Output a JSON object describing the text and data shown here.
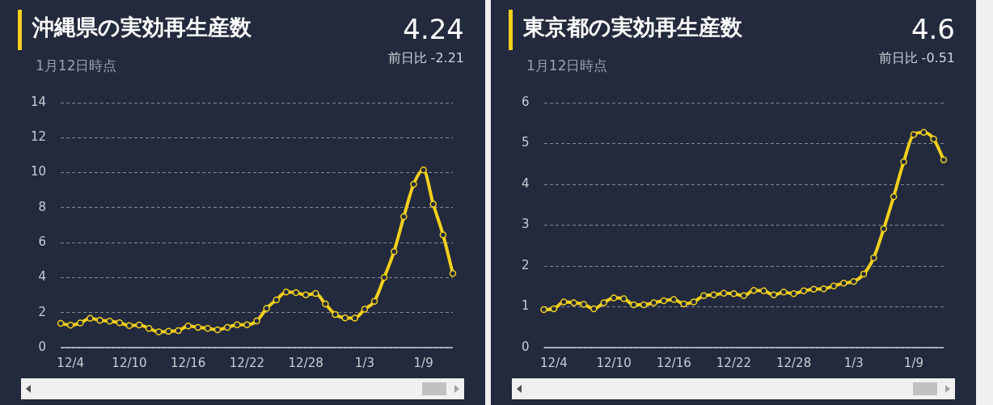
{
  "chart_data": [
    {
      "type": "line",
      "title": "沖縄県の実効再生産数",
      "subtitle": "1月12日時点",
      "annotations": [
        "4.24",
        "前日比 -2.21"
      ],
      "categories": [
        null,
        "12/4",
        null,
        null,
        null,
        null,
        null,
        "12/10",
        null,
        null,
        null,
        null,
        null,
        "12/16",
        null,
        null,
        null,
        null,
        null,
        "12/22",
        null,
        null,
        null,
        null,
        null,
        "12/28",
        null,
        null,
        null,
        null,
        null,
        "1/3",
        null,
        null,
        null,
        null,
        null,
        "1/9",
        null,
        null,
        null
      ],
      "series": [
        {
          "color": "#f2cf1d",
          "values": [
            1.39,
            1.28,
            1.41,
            1.67,
            1.56,
            1.51,
            1.42,
            1.26,
            1.29,
            1.1,
            0.9,
            0.93,
            0.97,
            1.24,
            1.16,
            1.1,
            1.02,
            1.16,
            1.31,
            1.31,
            1.52,
            2.24,
            2.73,
            3.18,
            3.14,
            3.01,
            3.09,
            2.49,
            1.9,
            1.7,
            1.69,
            2.19,
            2.65,
            4.01,
            5.49,
            7.48,
            9.33,
            10.15,
            8.2,
            6.45,
            4.24
          ]
        }
      ],
      "ylim": [
        0,
        14
      ],
      "yticks": [
        0,
        2,
        4,
        6,
        8,
        10,
        12,
        14
      ],
      "grid": "y",
      "legend": false,
      "marker": "circle",
      "line_style": "solid"
    },
    {
      "type": "line",
      "title": "東京都の実効再生産数",
      "subtitle": "1月12日時点",
      "annotations": [
        "4.6",
        "前日比 -0.51"
      ],
      "categories": [
        null,
        "12/4",
        null,
        null,
        null,
        null,
        null,
        "12/10",
        null,
        null,
        null,
        null,
        null,
        "12/16",
        null,
        null,
        null,
        null,
        null,
        "12/22",
        null,
        null,
        null,
        null,
        null,
        "12/28",
        null,
        null,
        null,
        null,
        null,
        "1/3",
        null,
        null,
        null,
        null,
        null,
        "1/9",
        null,
        null,
        null
      ],
      "series": [
        {
          "color": "#f2cf1d",
          "values": [
            0.93,
            0.95,
            1.12,
            1.1,
            1.06,
            0.95,
            1.1,
            1.22,
            1.2,
            1.05,
            1.05,
            1.1,
            1.15,
            1.18,
            1.07,
            1.12,
            1.27,
            1.29,
            1.33,
            1.32,
            1.27,
            1.4,
            1.39,
            1.29,
            1.36,
            1.32,
            1.39,
            1.43,
            1.44,
            1.51,
            1.58,
            1.62,
            1.8,
            2.2,
            2.91,
            3.7,
            4.55,
            5.22,
            5.27,
            5.11,
            4.6
          ]
        }
      ],
      "ylim": [
        0,
        6
      ],
      "yticks": [
        0,
        1,
        2,
        3,
        4,
        5,
        6
      ],
      "grid": "y",
      "legend": false,
      "marker": "circle",
      "line_style": "solid"
    }
  ]
}
